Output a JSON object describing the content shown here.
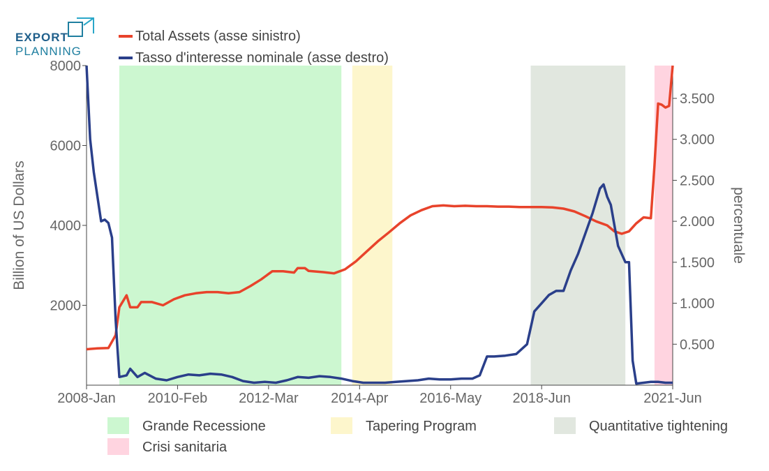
{
  "logo": {
    "line1": "EXPORT",
    "line2": "PLANNING"
  },
  "chart_data": {
    "type": "line",
    "title": "",
    "xlabel": "",
    "ylabel": "Billion of US Dollars",
    "y2label": "percentuale",
    "xlim": [
      "2008-01",
      "2021-06"
    ],
    "ylim": [
      0,
      8000
    ],
    "y2lim": [
      0,
      3.9
    ],
    "x_tick_labels": [
      "2008-Jan",
      "2010-Feb",
      "2012-Mar",
      "2014-Apr",
      "2016-May",
      "2018-Jun",
      "2021-Jun"
    ],
    "y_tick_labels": [
      "2000",
      "4000",
      "6000",
      "8000"
    ],
    "y2_tick_labels": [
      "0.500",
      "1.000",
      "1.500",
      "2.000",
      "2.500",
      "3.000",
      "3.500"
    ],
    "grid": false,
    "legend_position": "top-left",
    "series": [
      {
        "name": "Total Assets (asse sinistro)",
        "axis": "left",
        "color": "#e8432b",
        "points": [
          [
            "2008-01",
            900
          ],
          [
            "2008-04",
            920
          ],
          [
            "2008-07",
            930
          ],
          [
            "2008-09",
            1250
          ],
          [
            "2008-10",
            1950
          ],
          [
            "2008-12",
            2250
          ],
          [
            "2009-01",
            1950
          ],
          [
            "2009-03",
            1950
          ],
          [
            "2009-04",
            2080
          ],
          [
            "2009-07",
            2080
          ],
          [
            "2009-10",
            2000
          ],
          [
            "2010-01",
            2150
          ],
          [
            "2010-04",
            2250
          ],
          [
            "2010-07",
            2300
          ],
          [
            "2010-10",
            2330
          ],
          [
            "2011-01",
            2330
          ],
          [
            "2011-04",
            2300
          ],
          [
            "2011-07",
            2330
          ],
          [
            "2011-10",
            2480
          ],
          [
            "2012-01",
            2650
          ],
          [
            "2012-04",
            2850
          ],
          [
            "2012-07",
            2850
          ],
          [
            "2012-10",
            2820
          ],
          [
            "2012-11",
            2930
          ],
          [
            "2013-01",
            2930
          ],
          [
            "2013-02",
            2860
          ],
          [
            "2013-06",
            2830
          ],
          [
            "2013-09",
            2800
          ],
          [
            "2013-12",
            2900
          ],
          [
            "2014-03",
            3100
          ],
          [
            "2014-06",
            3350
          ],
          [
            "2014-09",
            3600
          ],
          [
            "2014-12",
            3820
          ],
          [
            "2015-03",
            4050
          ],
          [
            "2015-06",
            4250
          ],
          [
            "2015-09",
            4380
          ],
          [
            "2015-12",
            4480
          ],
          [
            "2016-03",
            4500
          ],
          [
            "2016-06",
            4480
          ],
          [
            "2016-09",
            4490
          ],
          [
            "2016-12",
            4480
          ],
          [
            "2017-03",
            4480
          ],
          [
            "2017-06",
            4470
          ],
          [
            "2017-09",
            4470
          ],
          [
            "2017-12",
            4460
          ],
          [
            "2018-03",
            4460
          ],
          [
            "2018-06",
            4460
          ],
          [
            "2018-09",
            4450
          ],
          [
            "2018-12",
            4420
          ],
          [
            "2019-03",
            4350
          ],
          [
            "2019-06",
            4230
          ],
          [
            "2019-09",
            4100
          ],
          [
            "2019-12",
            4000
          ],
          [
            "2020-02",
            3850
          ],
          [
            "2020-04",
            3790
          ],
          [
            "2020-06",
            3850
          ],
          [
            "2020-08",
            4050
          ],
          [
            "2020-10",
            4200
          ],
          [
            "2020-12",
            4180
          ],
          [
            "2021-01",
            5500
          ],
          [
            "2021-02",
            7050
          ],
          [
            "2021-03",
            7020
          ],
          [
            "2021-04",
            6950
          ],
          [
            "2021-05",
            6990
          ],
          [
            "2021-06",
            8000
          ]
        ]
      },
      {
        "name": "Tasso d'interesse nominale (asse destro)",
        "axis": "right",
        "color": "#2a3f8a",
        "points": [
          [
            "2008-01",
            3.9
          ],
          [
            "2008-02",
            3.0
          ],
          [
            "2008-03",
            2.6
          ],
          [
            "2008-05",
            2.0
          ],
          [
            "2008-06",
            2.02
          ],
          [
            "2008-07",
            1.98
          ],
          [
            "2008-08",
            1.8
          ],
          [
            "2008-09",
            0.8
          ],
          [
            "2008-10",
            0.1
          ],
          [
            "2008-12",
            0.12
          ],
          [
            "2009-01",
            0.2
          ],
          [
            "2009-03",
            0.1
          ],
          [
            "2009-05",
            0.15
          ],
          [
            "2009-08",
            0.08
          ],
          [
            "2009-11",
            0.06
          ],
          [
            "2010-02",
            0.1
          ],
          [
            "2010-05",
            0.13
          ],
          [
            "2010-08",
            0.12
          ],
          [
            "2010-11",
            0.14
          ],
          [
            "2011-02",
            0.13
          ],
          [
            "2011-05",
            0.1
          ],
          [
            "2011-08",
            0.05
          ],
          [
            "2011-11",
            0.03
          ],
          [
            "2012-02",
            0.04
          ],
          [
            "2012-05",
            0.03
          ],
          [
            "2012-08",
            0.06
          ],
          [
            "2012-11",
            0.1
          ],
          [
            "2013-02",
            0.09
          ],
          [
            "2013-05",
            0.11
          ],
          [
            "2013-08",
            0.1
          ],
          [
            "2013-11",
            0.08
          ],
          [
            "2014-02",
            0.05
          ],
          [
            "2014-05",
            0.03
          ],
          [
            "2014-08",
            0.03
          ],
          [
            "2014-11",
            0.03
          ],
          [
            "2015-02",
            0.04
          ],
          [
            "2015-05",
            0.05
          ],
          [
            "2015-08",
            0.06
          ],
          [
            "2015-11",
            0.08
          ],
          [
            "2016-02",
            0.07
          ],
          [
            "2016-05",
            0.07
          ],
          [
            "2016-08",
            0.08
          ],
          [
            "2016-11",
            0.08
          ],
          [
            "2017-01",
            0.12
          ],
          [
            "2017-03",
            0.35
          ],
          [
            "2017-05",
            0.35
          ],
          [
            "2017-08",
            0.36
          ],
          [
            "2017-11",
            0.38
          ],
          [
            "2018-02",
            0.5
          ],
          [
            "2018-04",
            0.9
          ],
          [
            "2018-06",
            1.0
          ],
          [
            "2018-08",
            1.1
          ],
          [
            "2018-10",
            1.15
          ],
          [
            "2018-12",
            1.15
          ],
          [
            "2019-02",
            1.4
          ],
          [
            "2019-04",
            1.6
          ],
          [
            "2019-06",
            1.85
          ],
          [
            "2019-08",
            2.1
          ],
          [
            "2019-10",
            2.4
          ],
          [
            "2019-11",
            2.45
          ],
          [
            "2019-12",
            2.3
          ],
          [
            "2020-01",
            2.2
          ],
          [
            "2020-03",
            1.7
          ],
          [
            "2020-05",
            1.5
          ],
          [
            "2020-06",
            1.5
          ],
          [
            "2020-07",
            0.3
          ],
          [
            "2020-08",
            0.02
          ],
          [
            "2020-10",
            0.03
          ],
          [
            "2020-12",
            0.04
          ],
          [
            "2021-02",
            0.04
          ],
          [
            "2021-04",
            0.03
          ],
          [
            "2021-06",
            0.03
          ]
        ]
      }
    ],
    "shaded_periods": [
      {
        "name": "Grande Recessione",
        "start": "2008-10",
        "end": "2013-11",
        "color": "#ccf7d0"
      },
      {
        "name": "Tapering Program",
        "start": "2014-02",
        "end": "2015-01",
        "color": "#fdf6cc"
      },
      {
        "name": "Quantitative tightening",
        "start": "2018-03",
        "end": "2020-05",
        "color": "#e1e7df"
      },
      {
        "name": "Crisi sanitaria",
        "start": "2021-01",
        "end": "2021-06",
        "color": "#ffd4e0"
      }
    ]
  }
}
